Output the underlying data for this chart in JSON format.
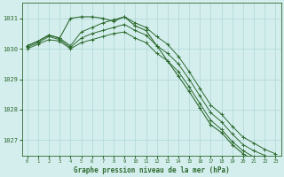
{
  "x": [
    0,
    1,
    2,
    3,
    4,
    5,
    6,
    7,
    8,
    9,
    10,
    11,
    12,
    13,
    14,
    15,
    16,
    17,
    18,
    19,
    20,
    21,
    22,
    23
  ],
  "line1": [
    1030.1,
    1030.25,
    1030.45,
    1030.35,
    1030.1,
    1030.55,
    1030.7,
    1030.85,
    1030.95,
    1031.05,
    1030.85,
    1030.7,
    1030.4,
    1030.15,
    1029.75,
    1029.25,
    1028.7,
    1028.15,
    1027.85,
    1027.45,
    1027.1,
    1026.9,
    1026.7,
    1026.55
  ],
  "line2": [
    1030.05,
    1030.2,
    1030.4,
    1030.3,
    1030.05,
    1030.35,
    1030.5,
    1030.6,
    1030.7,
    1030.8,
    1030.6,
    1030.45,
    1030.1,
    1029.85,
    1029.5,
    1029.0,
    1028.45,
    1027.9,
    1027.6,
    1027.2,
    1026.85,
    1026.65,
    1026.5,
    1026.35
  ],
  "line3": [
    1030.0,
    1030.15,
    1030.3,
    1030.25,
    1030.0,
    1030.2,
    1030.3,
    1030.4,
    1030.5,
    1030.55,
    1030.35,
    1030.2,
    1029.85,
    1029.6,
    1029.25,
    1028.75,
    1028.2,
    1027.65,
    1027.35,
    1026.95,
    1026.65,
    1026.45,
    1026.3,
    1026.15
  ],
  "line4_top": [
    1030.1,
    1030.25,
    1030.45,
    1030.35,
    1031.0,
    1031.05,
    1031.05,
    1031.0,
    1030.9,
    1031.05,
    1030.75,
    1030.6,
    1030.1,
    1029.6,
    1029.1,
    1028.6,
    1028.05,
    1027.5,
    1027.25,
    1026.85,
    1026.55,
    1026.35,
    1026.2,
    1026.05
  ],
  "bg_color": "#d4eeee",
  "grid_color": "#aed6d6",
  "line_color": "#2d6a2d",
  "title": "Graphe pression niveau de la mer (hPa)",
  "ylim_min": 1026.5,
  "ylim_max": 1031.5,
  "yticks": [
    1027,
    1028,
    1029,
    1030,
    1031
  ],
  "xticks": [
    0,
    1,
    2,
    3,
    4,
    5,
    6,
    7,
    8,
    9,
    10,
    11,
    12,
    13,
    14,
    15,
    16,
    17,
    18,
    19,
    20,
    21,
    22,
    23
  ]
}
